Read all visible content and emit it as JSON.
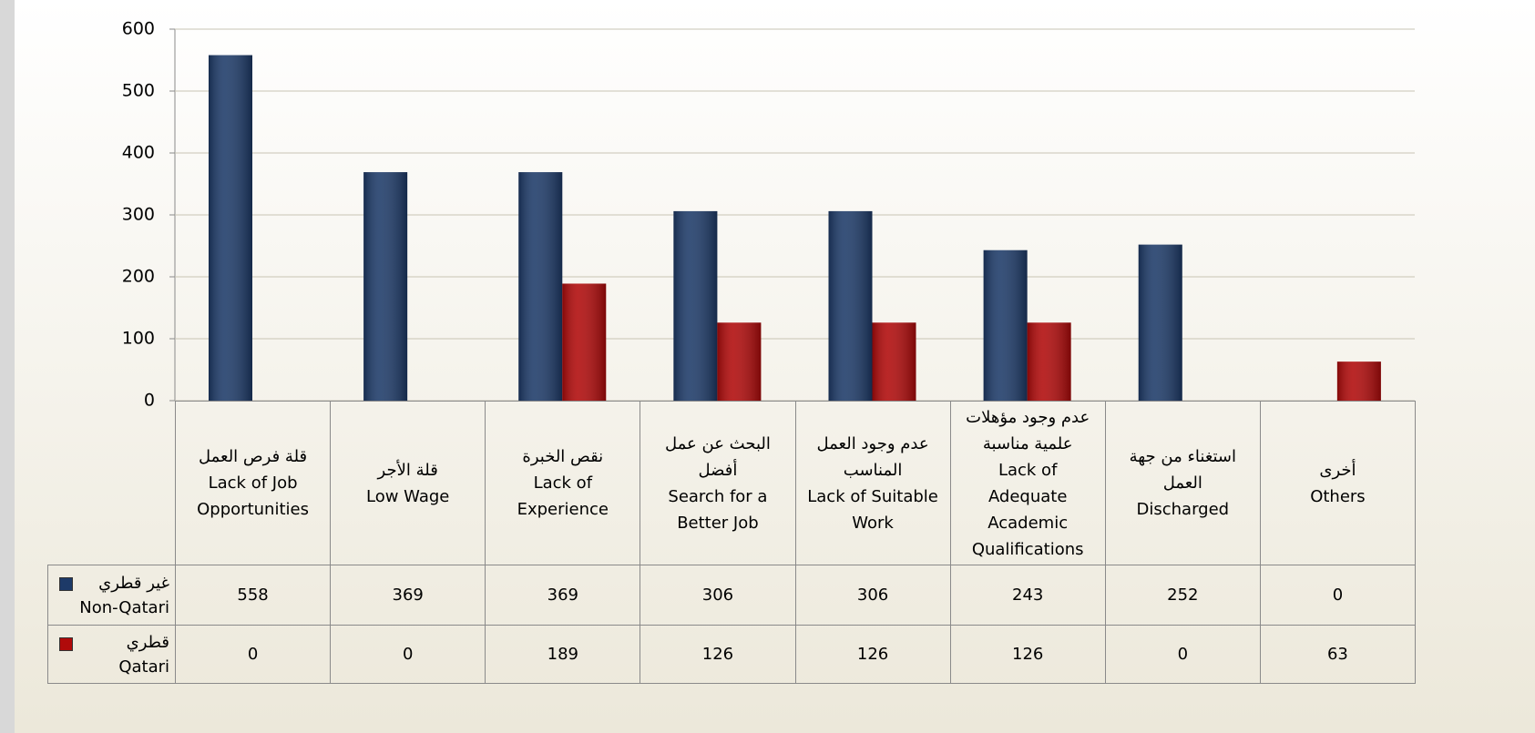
{
  "chart_data": {
    "type": "bar",
    "categories": [
      "قلة فرص العمل\nLack of Job\nOpportunities",
      "قلة الأجر\nLow Wage",
      "نقص الخبرة\nLack of\nExperience",
      "البحث عن عمل\nأفضل\nSearch for a\nBetter Job",
      "عدم وجود العمل\nالمناسب\nLack of Suitable\nWork",
      "عدم وجود مؤهلات\nعلمية مناسبة\nLack of\nAdequate\nAcademic\nQualifications",
      "استغناء من جهة\nالعمل\nDischarged",
      "أخرى\nOthers"
    ],
    "series": [
      {
        "name": "غير قطري\nNon-Qatari",
        "color": "#1d3a68",
        "values": [
          558,
          369,
          369,
          306,
          306,
          243,
          252,
          0
        ]
      },
      {
        "name": "قطري\nQatari",
        "color": "#b00a0a",
        "values": [
          0,
          0,
          189,
          126,
          126,
          126,
          0,
          63
        ]
      }
    ],
    "ylim": [
      0,
      600
    ],
    "yticks": [
      0,
      100,
      200,
      300,
      400,
      500,
      600
    ],
    "grid": true
  }
}
